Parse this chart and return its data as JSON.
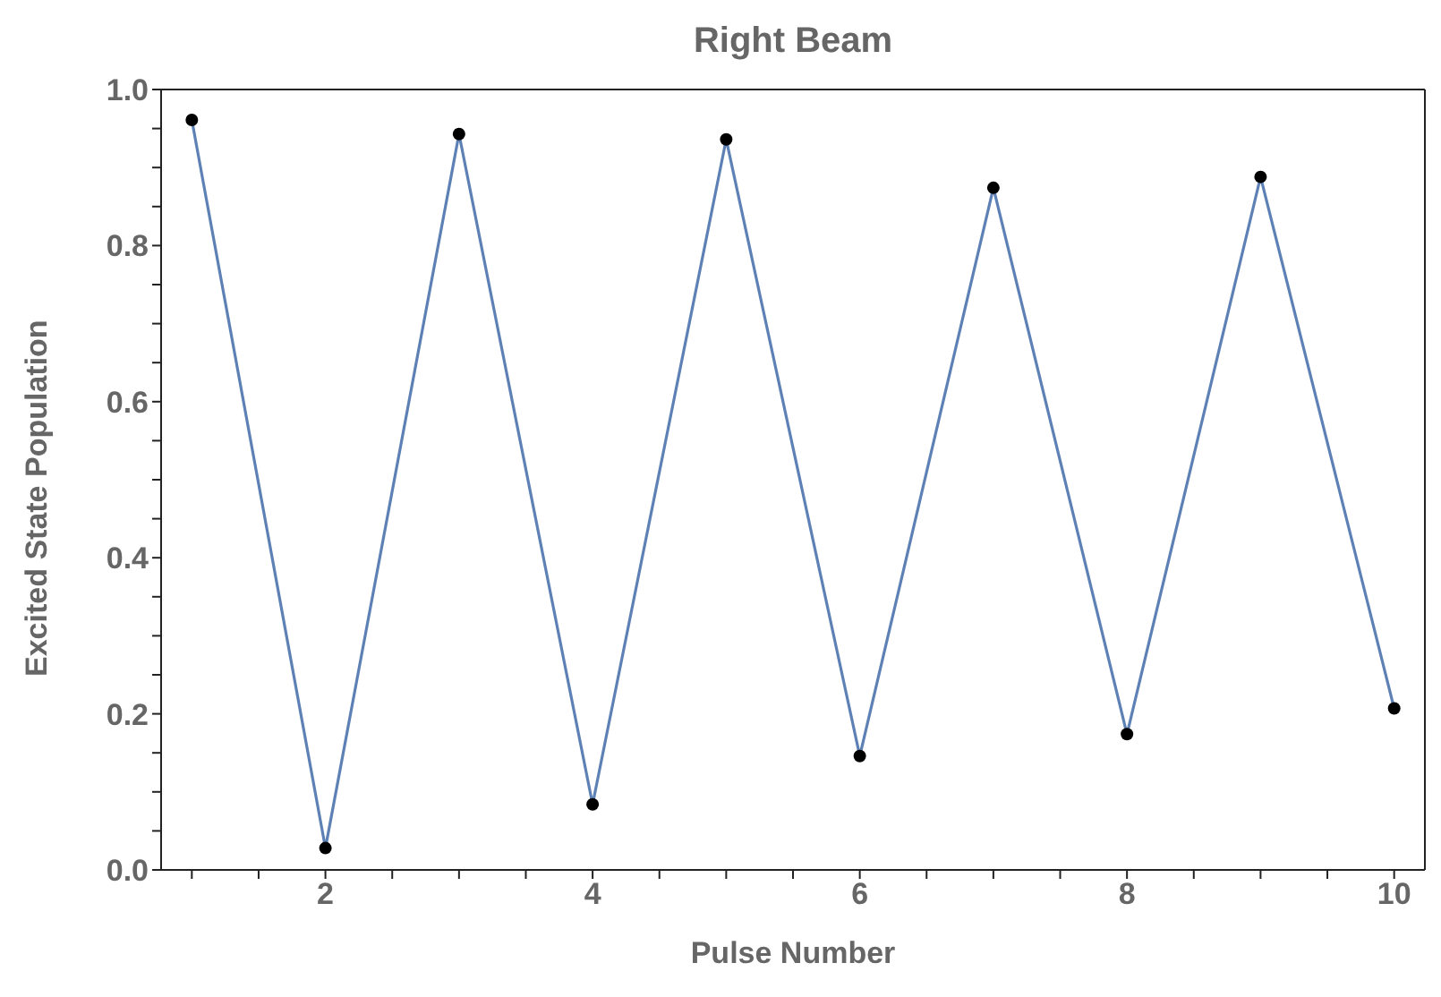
{
  "chart_data": {
    "type": "line",
    "title": "Right Beam",
    "xlabel": "Pulse Number",
    "ylabel": "Excited  State Population",
    "x": [
      1,
      2,
      3,
      4,
      5,
      6,
      7,
      8,
      9,
      10
    ],
    "series": [
      {
        "color": "#5e81b5",
        "values": [
          0.961,
          0.028,
          0.943,
          0.084,
          0.936,
          0.146,
          0.874,
          0.174,
          0.888,
          0.207
        ]
      }
    ],
    "marker": "circle",
    "line_style": "solid",
    "grid": false,
    "legend": false,
    "xlim": [
      0.77,
      10.23
    ],
    "xticks": [
      {
        "value": 1,
        "label": null
      },
      {
        "value": 1.5,
        "label": null
      },
      2,
      {
        "value": 2.5,
        "label": null
      },
      {
        "value": 3,
        "label": null
      },
      {
        "value": 3.5,
        "label": null
      },
      4,
      {
        "value": 4.5,
        "label": null
      },
      {
        "value": 5,
        "label": null
      },
      {
        "value": 5.5,
        "label": null
      },
      6,
      {
        "value": 6.5,
        "label": null
      },
      {
        "value": 7,
        "label": null
      },
      {
        "value": 7.5,
        "label": null
      },
      8,
      {
        "value": 8.5,
        "label": null
      },
      {
        "value": 9,
        "label": null
      },
      {
        "value": 9.5,
        "label": null
      },
      10
    ],
    "ylim": [
      0,
      1
    ],
    "yticks": [
      {
        "value": 0,
        "label": "0.0"
      },
      {
        "value": 0.05,
        "label": null
      },
      {
        "value": 0.1,
        "label": null
      },
      {
        "value": 0.15,
        "label": null
      },
      0.2,
      {
        "value": 0.25,
        "label": null
      },
      {
        "value": 0.3,
        "label": null
      },
      {
        "value": 0.35,
        "label": null
      },
      0.4,
      {
        "value": 0.45,
        "label": null
      },
      {
        "value": 0.5,
        "label": null
      },
      {
        "value": 0.55,
        "label": null
      },
      0.6,
      {
        "value": 0.65,
        "label": null
      },
      {
        "value": 0.7,
        "label": null
      },
      {
        "value": 0.75,
        "label": null
      },
      0.8,
      {
        "value": 0.85,
        "label": null
      },
      {
        "value": 0.9,
        "label": null
      },
      {
        "value": 0.95,
        "label": null
      },
      {
        "value": 1,
        "label": "1.0"
      }
    ]
  }
}
